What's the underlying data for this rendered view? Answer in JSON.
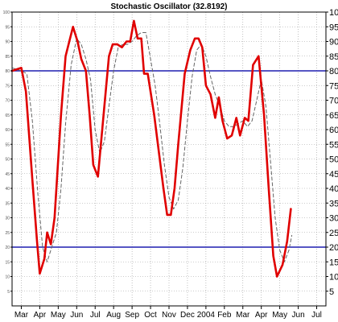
{
  "chart_data": {
    "type": "line",
    "title": "Stochastic Oscillator (32.8192)",
    "ylim": [
      0,
      100
    ],
    "y_ticks": [
      5,
      10,
      15,
      20,
      25,
      30,
      35,
      40,
      45,
      50,
      55,
      60,
      65,
      70,
      75,
      80,
      85,
      90,
      95,
      100
    ],
    "x_ticks": [
      "Mar",
      "Apr",
      "May",
      "Jun",
      "Jul",
      "Aug",
      "Sep",
      "Oct",
      "Nov",
      "Dec",
      "2004",
      "Feb",
      "Mar",
      "Apr",
      "May",
      "Jun",
      "Jul"
    ],
    "x_tick_positions": [
      1,
      3,
      5,
      7,
      9,
      11,
      13,
      15,
      17,
      19,
      21,
      23,
      25,
      27,
      29,
      31,
      33
    ],
    "grid": true,
    "reference_lines": [
      80,
      20
    ],
    "reference_line_color": "#1f1fb0",
    "series": [
      {
        "role": "%K",
        "color": "#e00000",
        "style": "solid",
        "points": [
          [
            0,
            80
          ],
          [
            1,
            81
          ],
          [
            1.5,
            73
          ],
          [
            2.2,
            43
          ],
          [
            2.7,
            22
          ],
          [
            3.0,
            11
          ],
          [
            3.5,
            16
          ],
          [
            3.8,
            25
          ],
          [
            4.2,
            21
          ],
          [
            4.6,
            30
          ],
          [
            5.3,
            65
          ],
          [
            5.8,
            85
          ],
          [
            6.6,
            95
          ],
          [
            7.1,
            90
          ],
          [
            7.5,
            84
          ],
          [
            8.0,
            80
          ],
          [
            8.4,
            65
          ],
          [
            8.8,
            48
          ],
          [
            9.3,
            44
          ],
          [
            10.0,
            68
          ],
          [
            10.5,
            85
          ],
          [
            10.9,
            89
          ],
          [
            11.4,
            89
          ],
          [
            11.9,
            88
          ],
          [
            12.4,
            90
          ],
          [
            12.8,
            90
          ],
          [
            13.2,
            97
          ],
          [
            13.6,
            91
          ],
          [
            14.0,
            91
          ],
          [
            14.3,
            79
          ],
          [
            14.7,
            79
          ],
          [
            15.4,
            65
          ],
          [
            16.4,
            40
          ],
          [
            16.8,
            31
          ],
          [
            17.2,
            31
          ],
          [
            17.6,
            40
          ],
          [
            18.0,
            55
          ],
          [
            18.7,
            79
          ],
          [
            19.3,
            87
          ],
          [
            19.8,
            91
          ],
          [
            20.2,
            91
          ],
          [
            20.6,
            88
          ],
          [
            21.0,
            75
          ],
          [
            21.5,
            72
          ],
          [
            22.0,
            64
          ],
          [
            22.4,
            71
          ],
          [
            22.8,
            63
          ],
          [
            23.3,
            57
          ],
          [
            23.8,
            58
          ],
          [
            24.3,
            64
          ],
          [
            24.7,
            58
          ],
          [
            25.2,
            64
          ],
          [
            25.6,
            63
          ],
          [
            26.1,
            82
          ],
          [
            26.7,
            85
          ],
          [
            27.3,
            65
          ],
          [
            27.8,
            40
          ],
          [
            28.3,
            17
          ],
          [
            28.7,
            10
          ],
          [
            29.3,
            14
          ],
          [
            29.8,
            22
          ],
          [
            30.2,
            33
          ]
        ]
      },
      {
        "role": "%D",
        "color": "#666666",
        "style": "dashed",
        "points": [
          [
            0,
            81
          ],
          [
            1,
            80
          ],
          [
            1.6,
            79
          ],
          [
            2.2,
            63
          ],
          [
            2.8,
            38
          ],
          [
            3.3,
            20
          ],
          [
            3.8,
            15
          ],
          [
            4.3,
            20
          ],
          [
            4.8,
            25
          ],
          [
            5.3,
            40
          ],
          [
            5.8,
            62
          ],
          [
            6.4,
            82
          ],
          [
            7.0,
            91
          ],
          [
            7.5,
            89
          ],
          [
            8.0,
            84
          ],
          [
            8.5,
            77
          ],
          [
            9.0,
            60
          ],
          [
            9.5,
            52
          ],
          [
            10.0,
            56
          ],
          [
            10.5,
            68
          ],
          [
            11.0,
            80
          ],
          [
            11.5,
            88
          ],
          [
            12.0,
            89
          ],
          [
            12.5,
            89
          ],
          [
            13.0,
            90
          ],
          [
            13.5,
            92
          ],
          [
            14.0,
            93
          ],
          [
            14.5,
            93
          ],
          [
            15.0,
            84
          ],
          [
            15.5,
            75
          ],
          [
            16.0,
            62
          ],
          [
            16.5,
            48
          ],
          [
            17.0,
            37
          ],
          [
            17.5,
            33
          ],
          [
            18.0,
            36
          ],
          [
            18.5,
            47
          ],
          [
            19.0,
            63
          ],
          [
            19.5,
            78
          ],
          [
            20.0,
            87
          ],
          [
            20.5,
            89
          ],
          [
            21.0,
            85
          ],
          [
            21.5,
            78
          ],
          [
            22.0,
            72
          ],
          [
            22.5,
            68
          ],
          [
            23.0,
            63
          ],
          [
            23.5,
            61
          ],
          [
            24.0,
            61
          ],
          [
            24.5,
            62
          ],
          [
            25.0,
            63
          ],
          [
            25.5,
            61
          ],
          [
            26.0,
            63
          ],
          [
            26.5,
            70
          ],
          [
            27.0,
            77
          ],
          [
            27.5,
            68
          ],
          [
            28.0,
            49
          ],
          [
            28.5,
            30
          ],
          [
            29.0,
            19
          ],
          [
            29.5,
            15
          ],
          [
            30.0,
            19
          ],
          [
            30.3,
            24
          ]
        ]
      }
    ]
  }
}
